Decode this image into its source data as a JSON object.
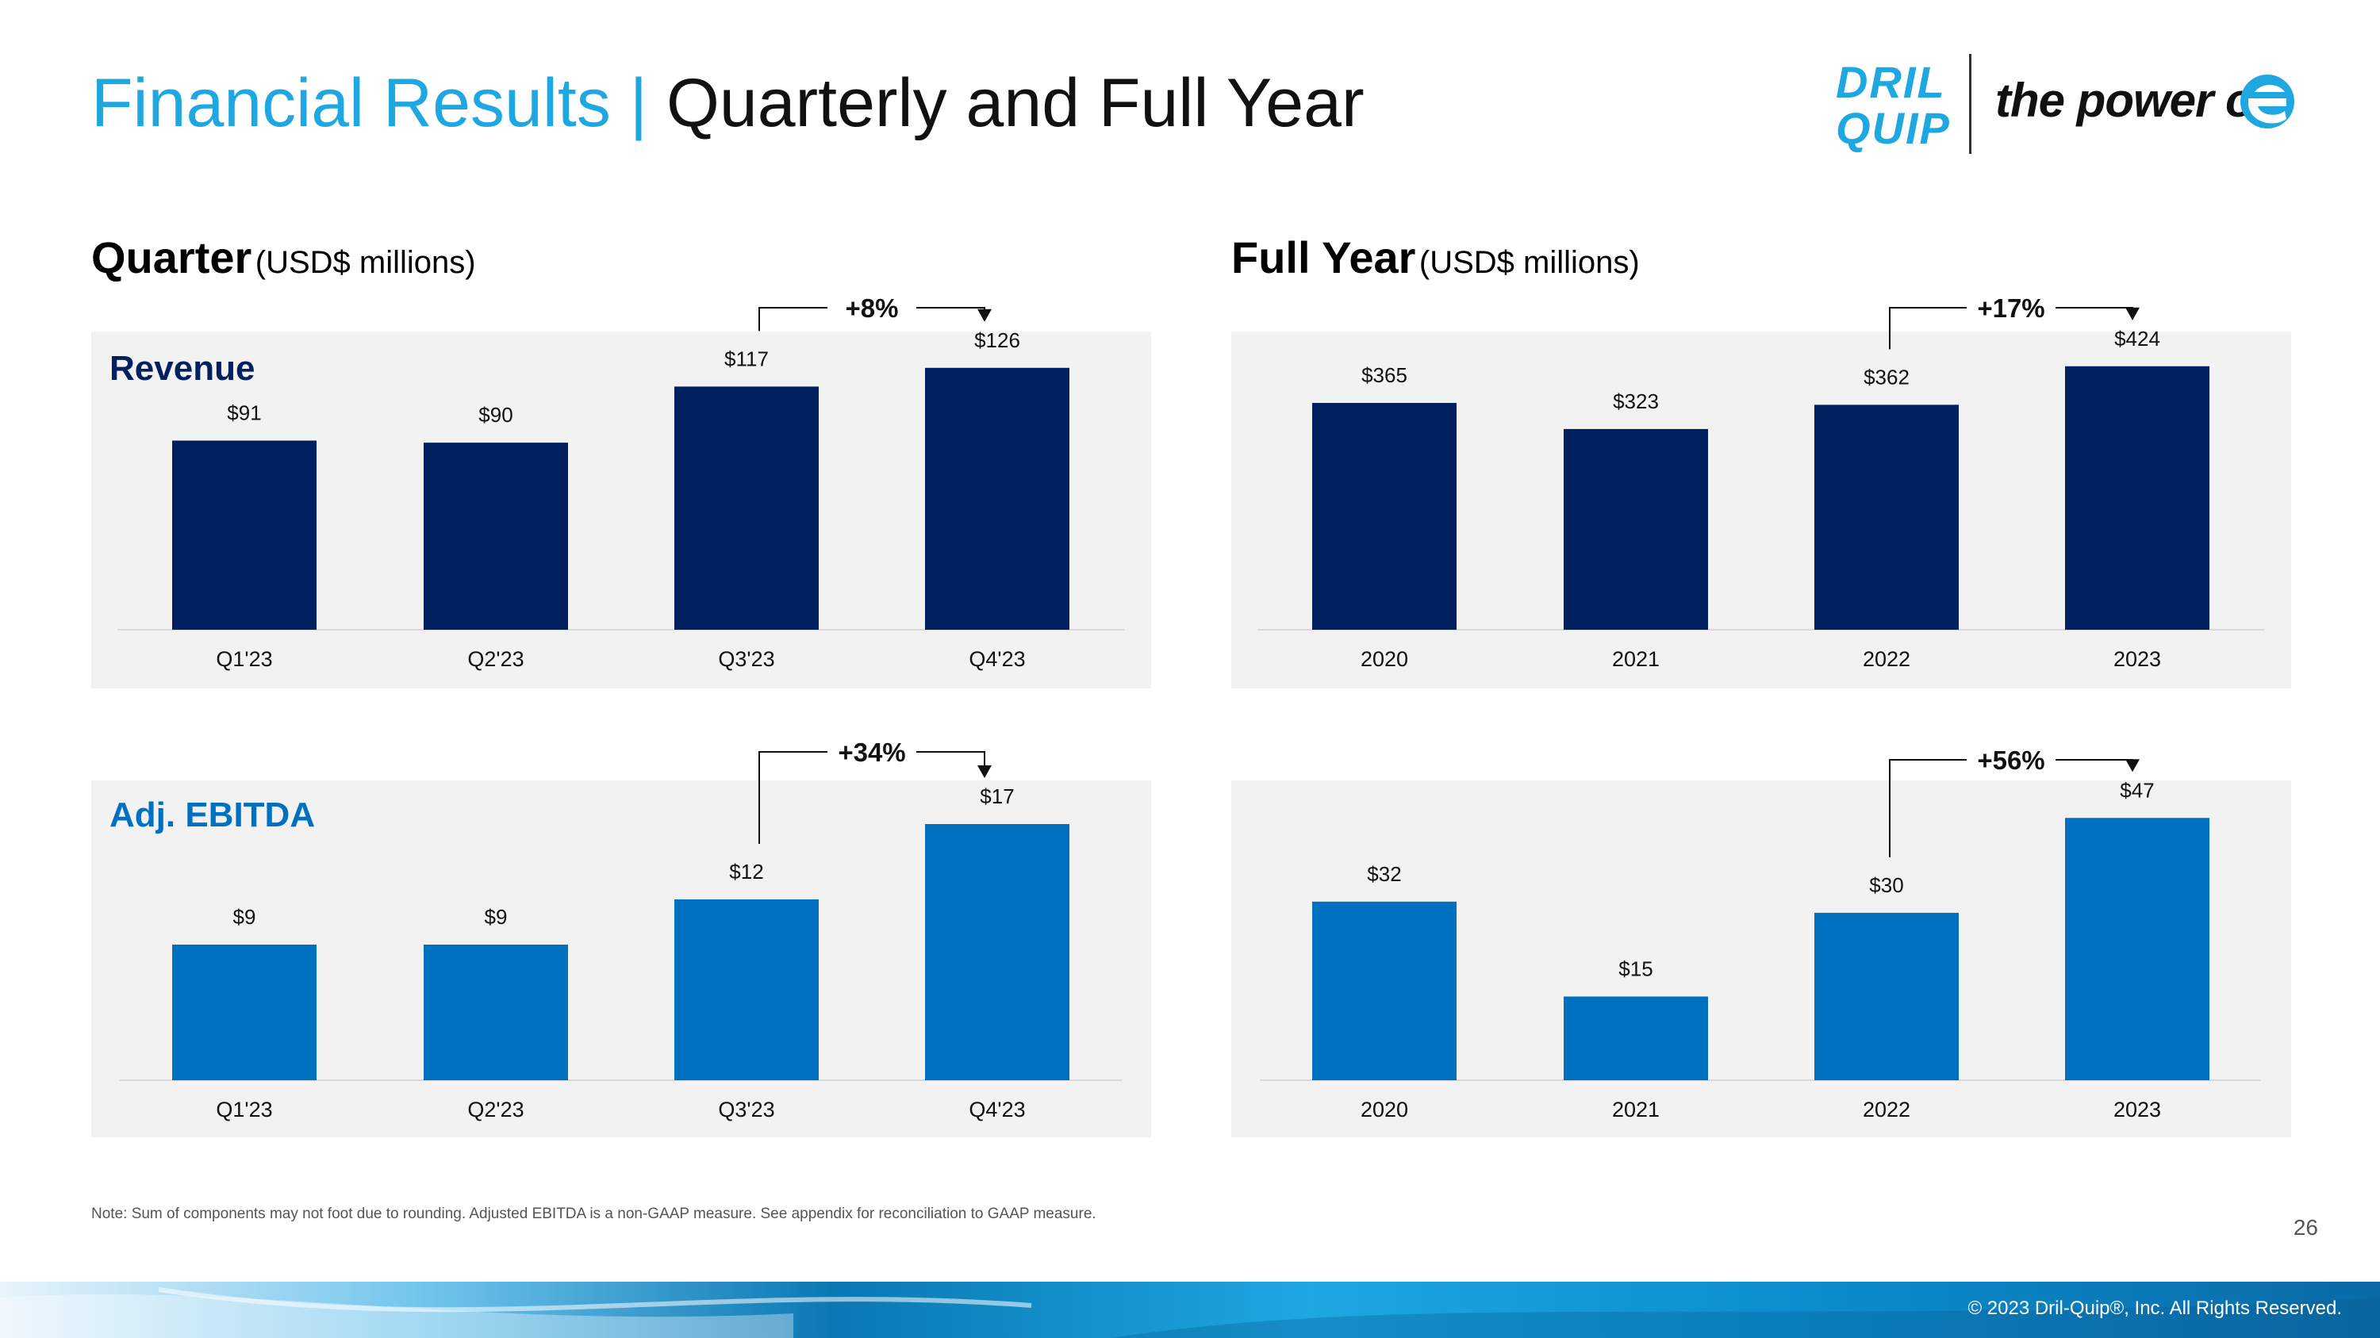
{
  "title": {
    "main": "Financial Results",
    "separator": "|",
    "sub": "Quarterly and Full Year"
  },
  "logo": {
    "brand_line1": "DRIL",
    "brand_line2": "QUIP",
    "tagline": "the power of"
  },
  "sections": {
    "quarter": {
      "heading": "Quarter",
      "unit": "(USD$ millions)"
    },
    "full_year": {
      "heading": "Full Year",
      "unit": "(USD$ millions)"
    }
  },
  "colors": {
    "revenue_bar": "#002060",
    "ebitda_bar": "#0070c0",
    "title_accent": "#1ea7e1",
    "panel_bg": "#f2f2f2"
  },
  "chart_data": [
    {
      "id": "quarter-revenue",
      "type": "bar",
      "panel_label": "Revenue",
      "panel_label_color": "#002060",
      "categories": [
        "Q1'23",
        "Q2'23",
        "Q3'23",
        "Q4'23"
      ],
      "values": [
        91,
        90,
        117,
        126
      ],
      "data_labels": [
        "$91",
        "$90",
        "$117",
        "$126"
      ],
      "ylim": [
        0,
        145
      ],
      "color": "#002060",
      "change": {
        "label": "+8%",
        "from_index": 2,
        "to_index": 3
      }
    },
    {
      "id": "year-revenue",
      "type": "bar",
      "panel_label": "",
      "categories": [
        "2020",
        "2021",
        "2022",
        "2023"
      ],
      "values": [
        365,
        323,
        362,
        424
      ],
      "data_labels": [
        "$365",
        "$323",
        "$362",
        "$424"
      ],
      "ylim": [
        0,
        485
      ],
      "color": "#002060",
      "change": {
        "label": "+17%",
        "from_index": 2,
        "to_index": 3
      }
    },
    {
      "id": "quarter-ebitda",
      "type": "bar",
      "panel_label": "Adj. EBITDA",
      "panel_label_color": "#0070c0",
      "categories": [
        "Q1'23",
        "Q2'23",
        "Q3'23",
        "Q4'23"
      ],
      "values": [
        9,
        9,
        12,
        17
      ],
      "data_labels": [
        "$9",
        "$9",
        "$12",
        "$17"
      ],
      "ylim": [
        0,
        20
      ],
      "color": "#0070c0",
      "change": {
        "label": "+34%",
        "from_index": 2,
        "to_index": 3
      }
    },
    {
      "id": "year-ebitda",
      "type": "bar",
      "panel_label": "",
      "categories": [
        "2020",
        "2021",
        "2022",
        "2023"
      ],
      "values": [
        32,
        15,
        30,
        47
      ],
      "data_labels": [
        "$32",
        "$15",
        "$30",
        "$47"
      ],
      "ylim": [
        0,
        54
      ],
      "color": "#0070c0",
      "change": {
        "label": "+56%",
        "from_index": 2,
        "to_index": 3
      }
    }
  ],
  "note": "Note: Sum of components may not foot due to rounding. Adjusted EBITDA is a non-GAAP measure. See appendix for reconciliation to GAAP measure.",
  "page_number": "26",
  "copyright": "© 2023 Dril-Quip®, Inc. All Rights Reserved."
}
